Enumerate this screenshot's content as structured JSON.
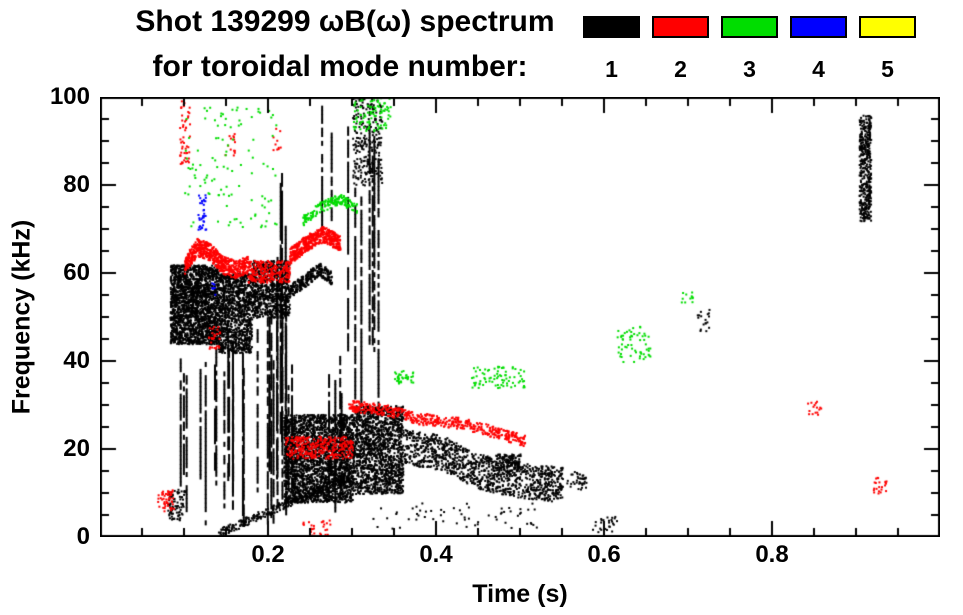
{
  "title": {
    "line1": "Shot 139299 ωB(ω) spectrum",
    "line2": "for toroidal mode number:"
  },
  "legend": {
    "entries": [
      {
        "label": "1",
        "color": "#000000"
      },
      {
        "label": "2",
        "color": "#ff0000"
      },
      {
        "label": "3",
        "color": "#00dd00"
      },
      {
        "label": "4",
        "color": "#0000ff"
      },
      {
        "label": "5",
        "color": "#ffff00"
      }
    ]
  },
  "axes": {
    "xlabel": "Time (s)",
    "ylabel": "Frequency (kHz)"
  },
  "chart_data": {
    "type": "scatter",
    "title": "Shot 139299 ωB(ω) spectrum for toroidal mode number 1-5",
    "xlabel": "Time (s)",
    "ylabel": "Frequency (kHz)",
    "xlim": [
      0,
      1
    ],
    "ylim": [
      0,
      100
    ],
    "xticks": [
      0.2,
      0.4,
      0.6,
      0.8
    ],
    "yticks": [
      0,
      20,
      40,
      60,
      80,
      100
    ],
    "x_minor_step": 0.05,
    "y_minor_step": 5,
    "grid": false,
    "legend_position": "top-right",
    "series": [
      {
        "name": "n=1",
        "color": "#000000",
        "clusters": [
          {
            "kind": "cloud",
            "t": [
              0.083,
              0.14
            ],
            "f": [
              44,
              62
            ],
            "n": 2000,
            "s": 2
          },
          {
            "kind": "cloud",
            "t": [
              0.14,
              0.18
            ],
            "f": [
              42,
              60
            ],
            "n": 1100,
            "s": 2
          },
          {
            "kind": "cloud",
            "t": [
              0.18,
              0.225
            ],
            "f": [
              50,
              63
            ],
            "n": 800,
            "s": 2
          },
          {
            "kind": "vlines",
            "t": [
              0.088,
              0.23
            ],
            "f": [
              2,
              52
            ],
            "count": 26
          },
          {
            "kind": "vlines",
            "t": [
              0.198,
              0.222
            ],
            "f": [
              8,
              86
            ],
            "count": 5
          },
          {
            "kind": "vlines",
            "t": [
              0.243,
              0.3
            ],
            "f": [
              4,
              44
            ],
            "count": 4
          },
          {
            "kind": "vlines",
            "t": [
              0.26,
              0.275
            ],
            "f": [
              60,
              100
            ],
            "count": 2
          },
          {
            "kind": "band",
            "path": [
              [
                0.225,
                56
              ],
              [
                0.24,
                58
              ],
              [
                0.26,
                61
              ],
              [
                0.275,
                59
              ]
            ],
            "w": 1.5,
            "n": 260,
            "s": 2
          },
          {
            "kind": "cloud",
            "t": [
              0.218,
              0.3
            ],
            "f": [
              8,
              28
            ],
            "n": 2400,
            "s": 2
          },
          {
            "kind": "cloud",
            "t": [
              0.3,
              0.36
            ],
            "f": [
              10,
              30
            ],
            "n": 1500,
            "s": 2
          },
          {
            "kind": "band",
            "path": [
              [
                0.36,
                21
              ],
              [
                0.41,
                19
              ],
              [
                0.45,
                15
              ],
              [
                0.5,
                13
              ],
              [
                0.55,
                12
              ]
            ],
            "w": 4,
            "n": 1100,
            "s": 2
          },
          {
            "kind": "vlines",
            "t": [
              0.285,
              0.335
            ],
            "f": [
              28,
              100
            ],
            "count": 7
          },
          {
            "kind": "cloud",
            "t": [
              0.3,
              0.335
            ],
            "f": [
              80,
              100
            ],
            "n": 260,
            "s": 2
          },
          {
            "kind": "band",
            "path": [
              [
                0.14,
                1
              ],
              [
                0.2,
                6
              ],
              [
                0.27,
                12
              ],
              [
                0.3,
                14
              ]
            ],
            "w": 1,
            "n": 320,
            "s": 2
          },
          {
            "kind": "cloud",
            "t": [
              0.903,
              0.917
            ],
            "f": [
              72,
              96
            ],
            "n": 420,
            "s": 2
          },
          {
            "kind": "cloud",
            "t": [
              0.08,
              0.1
            ],
            "f": [
              4,
              11
            ],
            "n": 80,
            "s": 2
          },
          {
            "kind": "cloud",
            "t": [
              0.32,
              0.52
            ],
            "f": [
              2,
              8
            ],
            "n": 60,
            "s": 2
          },
          {
            "kind": "cloud",
            "t": [
              0.585,
              0.615
            ],
            "f": [
              1,
              5
            ],
            "n": 26,
            "s": 2
          },
          {
            "kind": "cloud",
            "t": [
              0.71,
              0.725
            ],
            "f": [
              47,
              52
            ],
            "n": 18,
            "s": 2
          },
          {
            "kind": "cloud",
            "t": [
              0.555,
              0.578
            ],
            "f": [
              11,
              15
            ],
            "n": 40,
            "s": 2
          },
          {
            "kind": "cloud",
            "t": [
              0.47,
              0.5
            ],
            "f": [
              15,
              19
            ],
            "n": 120,
            "s": 2
          }
        ]
      },
      {
        "name": "n=2",
        "color": "#ff0000",
        "clusters": [
          {
            "kind": "band",
            "path": [
              [
                0.1,
                62
              ],
              [
                0.115,
                66
              ],
              [
                0.13,
                65
              ],
              [
                0.145,
                62
              ],
              [
                0.16,
                61
              ],
              [
                0.175,
                62
              ]
            ],
            "w": 2,
            "n": 620,
            "s": 2
          },
          {
            "kind": "cloud",
            "t": [
              0.175,
              0.225
            ],
            "f": [
              58,
              63
            ],
            "n": 260,
            "s": 2
          },
          {
            "kind": "band",
            "path": [
              [
                0.225,
                64
              ],
              [
                0.245,
                67
              ],
              [
                0.265,
                69
              ],
              [
                0.285,
                67
              ]
            ],
            "w": 1.8,
            "n": 520,
            "s": 2
          },
          {
            "kind": "band",
            "path": [
              [
                0.295,
                30
              ],
              [
                0.34,
                29
              ],
              [
                0.38,
                27
              ],
              [
                0.43,
                26
              ],
              [
                0.47,
                24
              ],
              [
                0.505,
                22
              ]
            ],
            "w": 1.3,
            "n": 520,
            "s": 2
          },
          {
            "kind": "cloud",
            "t": [
              0.22,
              0.3
            ],
            "f": [
              18,
              23
            ],
            "n": 300,
            "s": 2
          },
          {
            "kind": "cloud",
            "t": [
              0.094,
              0.106
            ],
            "f": [
              85,
              100
            ],
            "n": 50,
            "s": 2
          },
          {
            "kind": "cloud",
            "t": [
              0.128,
              0.142
            ],
            "f": [
              43,
              48
            ],
            "n": 30,
            "s": 2
          },
          {
            "kind": "cloud",
            "t": [
              0.148,
              0.16
            ],
            "f": [
              86,
              92
            ],
            "n": 14,
            "s": 2
          },
          {
            "kind": "cloud",
            "t": [
              0.205,
              0.216
            ],
            "f": [
              88,
              93
            ],
            "n": 10,
            "s": 2
          },
          {
            "kind": "cloud",
            "t": [
              0.84,
              0.858
            ],
            "f": [
              28,
              31
            ],
            "n": 16,
            "s": 2
          },
          {
            "kind": "cloud",
            "t": [
              0.92,
              0.936
            ],
            "f": [
              10,
              14
            ],
            "n": 22,
            "s": 2
          },
          {
            "kind": "cloud",
            "t": [
              0.068,
              0.088
            ],
            "f": [
              6,
              11
            ],
            "n": 46,
            "s": 2
          },
          {
            "kind": "cloud",
            "t": [
              0.24,
              0.275
            ],
            "f": [
              0,
              4
            ],
            "n": 30,
            "s": 2
          }
        ]
      },
      {
        "name": "n=3",
        "color": "#00dd00",
        "clusters": [
          {
            "kind": "cloud",
            "t": [
              0.1,
              0.21
            ],
            "f": [
              70,
              98
            ],
            "n": 110,
            "s": 2
          },
          {
            "kind": "band",
            "path": [
              [
                0.24,
                72
              ],
              [
                0.26,
                75
              ],
              [
                0.285,
                77
              ],
              [
                0.305,
                75
              ]
            ],
            "w": 1.2,
            "n": 170,
            "s": 2
          },
          {
            "kind": "cloud",
            "t": [
              0.3,
              0.345
            ],
            "f": [
              92,
              100
            ],
            "n": 90,
            "s": 2
          },
          {
            "kind": "cloud",
            "t": [
              0.35,
              0.372
            ],
            "f": [
              35,
              38
            ],
            "n": 36,
            "s": 2
          },
          {
            "kind": "cloud",
            "t": [
              0.44,
              0.505
            ],
            "f": [
              34,
              39
            ],
            "n": 80,
            "s": 2
          },
          {
            "kind": "cloud",
            "t": [
              0.615,
              0.655
            ],
            "f": [
              40,
              48
            ],
            "n": 60,
            "s": 2
          },
          {
            "kind": "cloud",
            "t": [
              0.69,
              0.705
            ],
            "f": [
              53,
              56
            ],
            "n": 12,
            "s": 2
          }
        ]
      },
      {
        "name": "n=4",
        "color": "#0000ff",
        "clusters": [
          {
            "kind": "cloud",
            "t": [
              0.116,
              0.126
            ],
            "f": [
              70,
              78
            ],
            "n": 34,
            "s": 2
          },
          {
            "kind": "cloud",
            "t": [
              0.132,
              0.14
            ],
            "f": [
              55,
              58
            ],
            "n": 8,
            "s": 2
          }
        ]
      },
      {
        "name": "n=5",
        "color": "#ffff00",
        "clusters": []
      }
    ]
  }
}
